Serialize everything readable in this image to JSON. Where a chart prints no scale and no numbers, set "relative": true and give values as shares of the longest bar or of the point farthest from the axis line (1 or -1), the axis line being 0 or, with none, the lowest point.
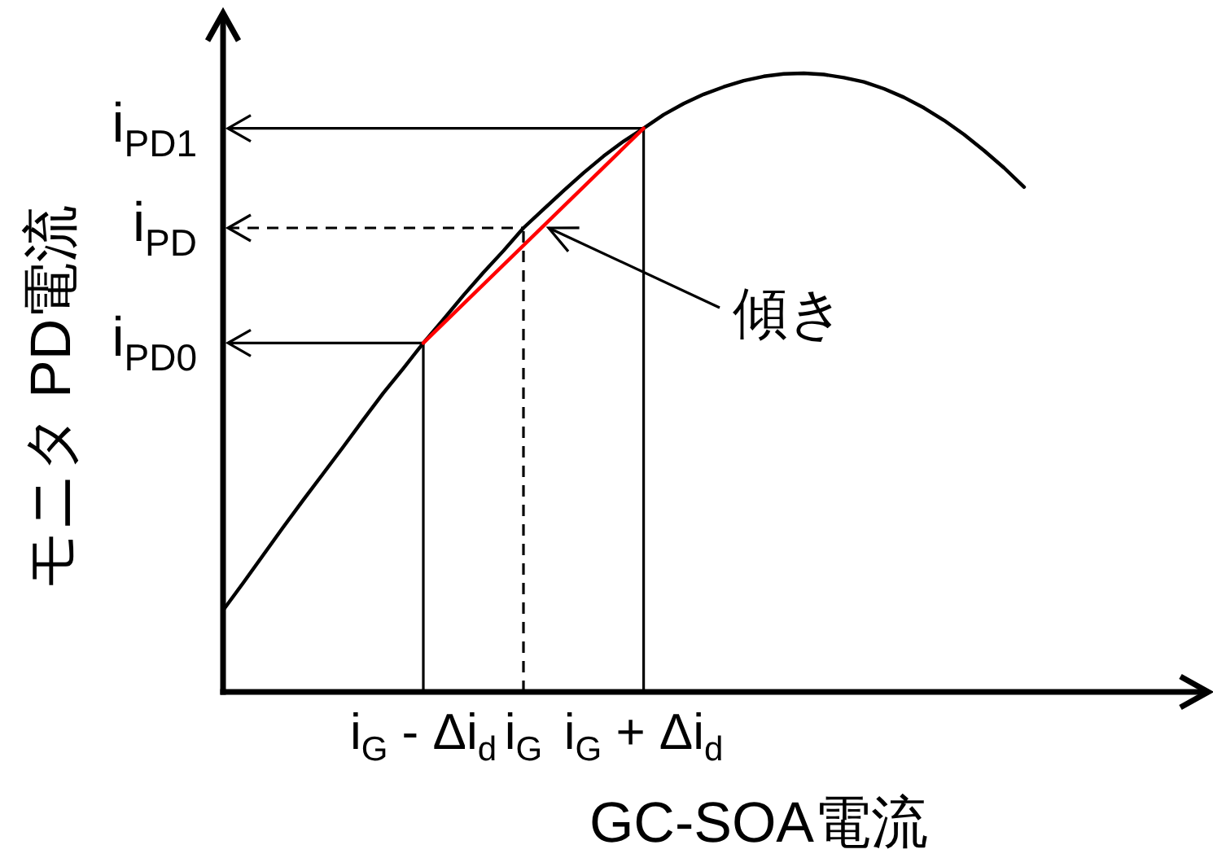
{
  "chart_data": {
    "type": "line",
    "relative": true,
    "xlabel": "GC-SOA電流",
    "ylabel": "モニタ PD電流",
    "categories": [
      null,
      null,
      null,
      null,
      null,
      null,
      null,
      null,
      null,
      null,
      "i$_{G}$ - Δi$_{d}$",
      null,
      null,
      null,
      null,
      "i$_{G}$",
      null,
      null,
      null,
      null,
      null,
      "i$_{G}$ + Δi$_{d}$",
      null,
      null,
      null,
      null,
      null,
      null,
      null,
      null,
      null,
      null,
      null,
      null,
      null,
      null,
      null,
      null,
      null,
      null,
      null
    ],
    "series": [
      {
        "color": "#000000",
        "values": [
          0.132,
          0.176,
          0.221,
          0.266,
          0.31,
          0.353,
          0.396,
          0.44,
          0.483,
          0.523,
          0.564,
          0.602,
          0.641,
          0.678,
          0.713,
          0.75,
          0.78,
          0.81,
          0.839,
          0.866,
          0.89,
          0.911,
          0.933,
          0.951,
          0.966,
          0.978,
          0.988,
          0.995,
          0.999,
          1.0,
          0.998,
          0.993,
          0.986,
          0.975,
          0.961,
          0.944,
          0.924,
          0.901,
          0.875,
          0.847,
          0.816
        ]
      },
      {
        "color": "#ff0000",
        "x": [
          "i$_{G}$ - Δi$_{d}$",
          "i$_{G}$ + Δi$_{d}$"
        ],
        "values": [
          0.564,
          0.911
        ]
      }
    ],
    "ref_lines": [
      {
        "axis": "y",
        "value": 0.911,
        "label": "i$_{PD1}$",
        "line_style": "solid"
      },
      {
        "axis": "y",
        "value": 0.75,
        "label": "i$_{PD}$",
        "line_style": "dashed"
      },
      {
        "axis": "y",
        "value": 0.564,
        "label": "i$_{PD0}$",
        "line_style": "solid"
      },
      {
        "axis": "x",
        "value": "i$_{G}$ - Δi$_{d}$",
        "line_style": "solid"
      },
      {
        "axis": "x",
        "value": "i$_{G}$",
        "line_style": "dashed"
      },
      {
        "axis": "x",
        "value": "i$_{G}$ + Δi$_{d}$",
        "line_style": "solid"
      }
    ],
    "annotations": [
      "傾き"
    ]
  }
}
